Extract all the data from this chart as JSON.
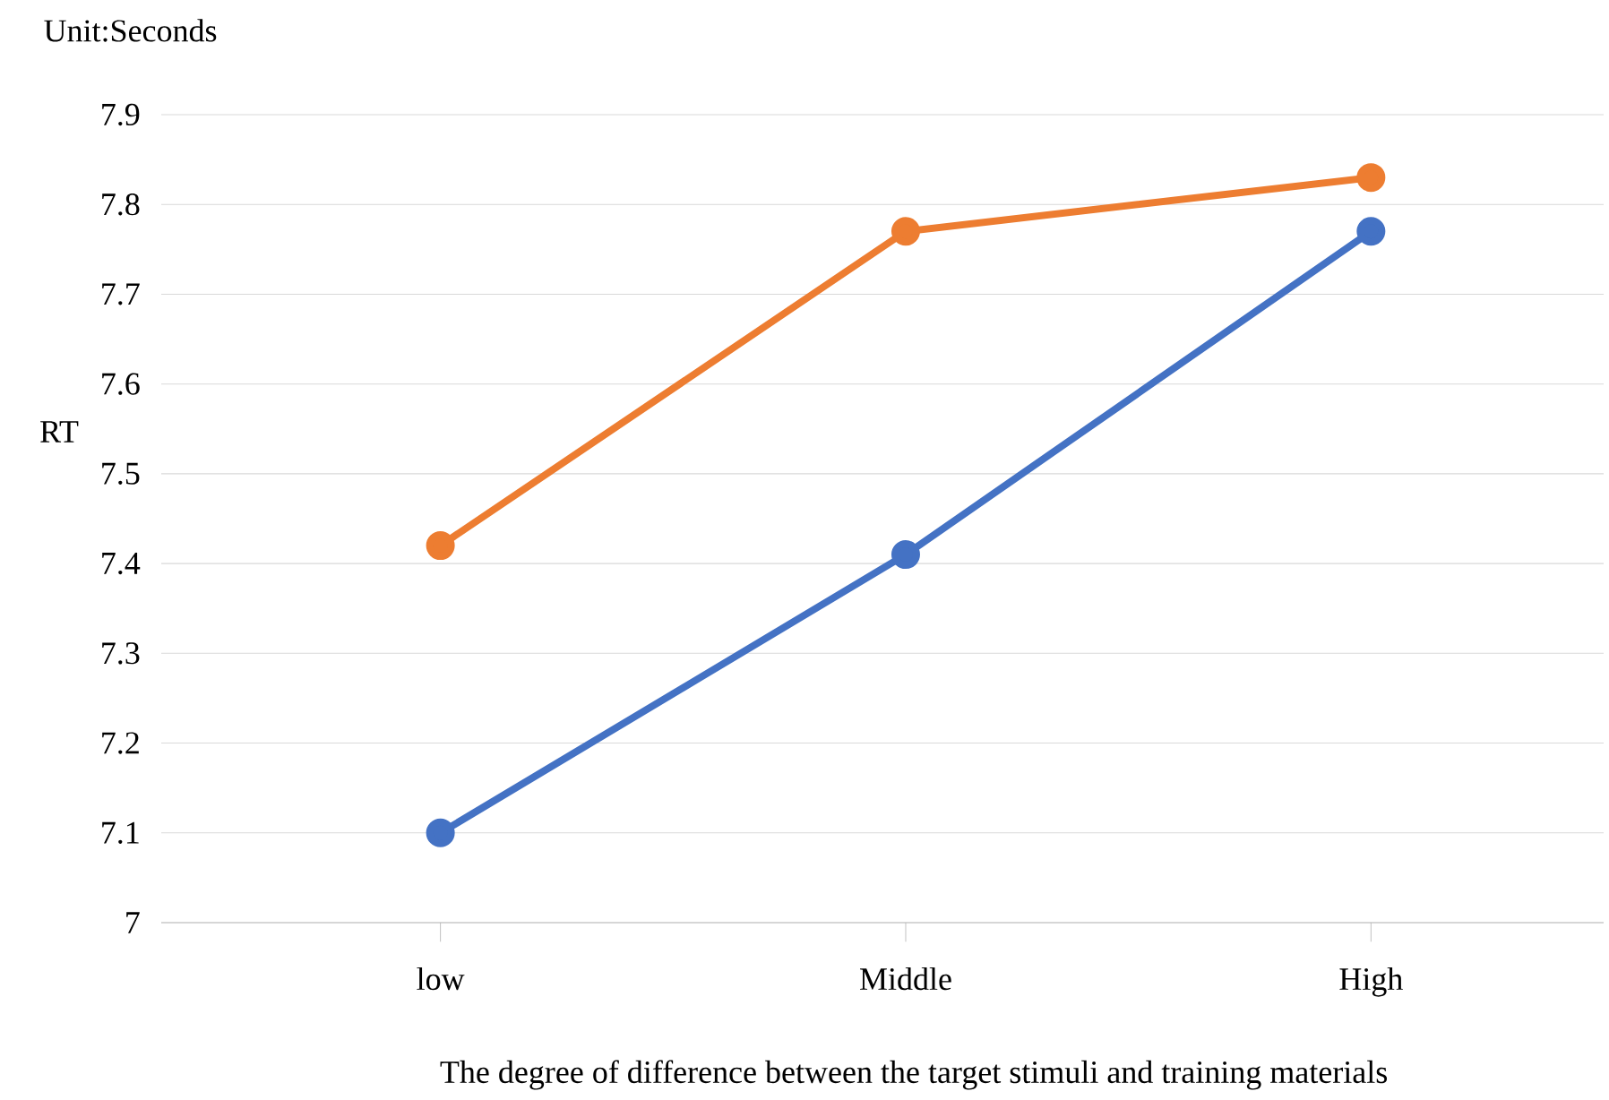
{
  "chart_data": {
    "type": "line",
    "annotations": [
      "Unit:Seconds"
    ],
    "xlabel": "The degree of difference between the target stimuli and training materials",
    "ylabel": "RT",
    "categories": [
      "low",
      "Middle",
      "High"
    ],
    "series": [
      {
        "color": "#4472c4",
        "values": [
          7.1,
          7.41,
          7.77
        ]
      },
      {
        "color": "#ed7d31",
        "values": [
          7.42,
          7.77,
          7.83
        ]
      }
    ],
    "ylim": [
      7,
      7.9
    ],
    "yticks": [
      7,
      7.1,
      7.2,
      7.3,
      7.4,
      7.5,
      7.6,
      7.7,
      7.8,
      7.9
    ],
    "grid": "y",
    "marker": "circle",
    "line_style": "solid"
  }
}
